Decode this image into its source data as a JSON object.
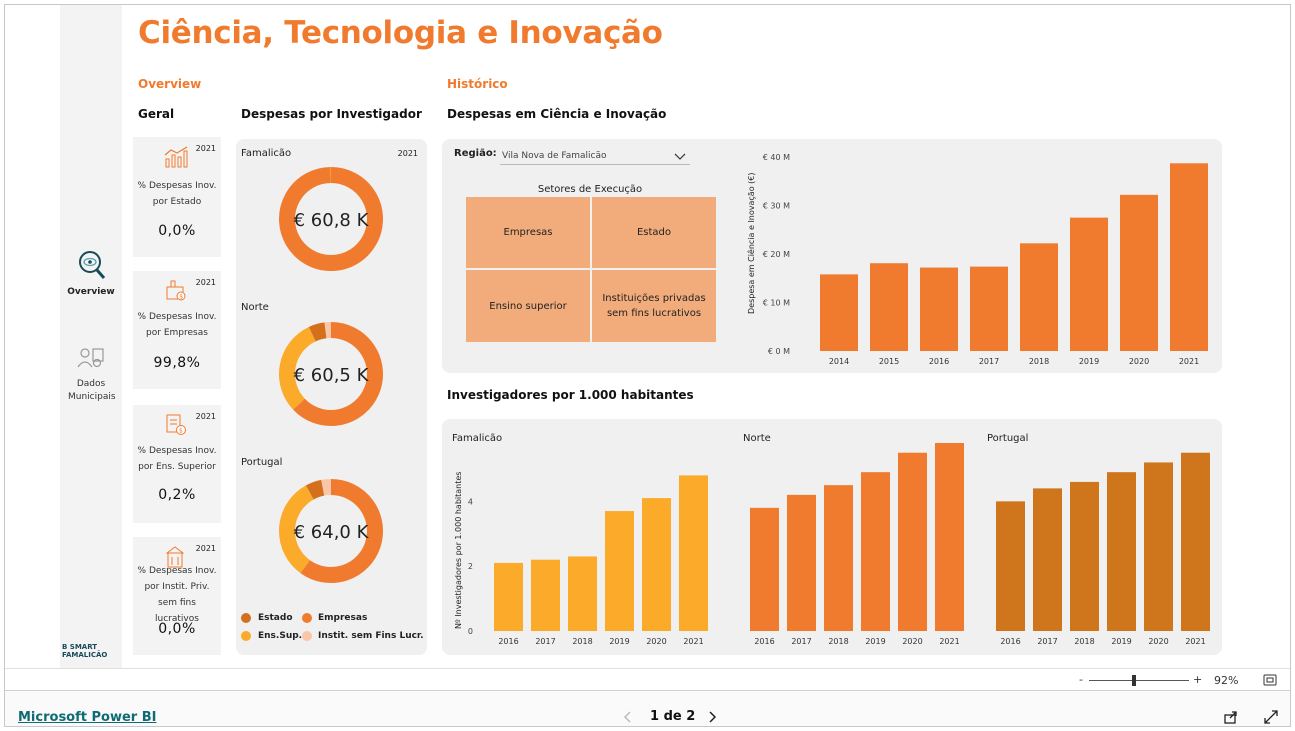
{
  "report": {
    "title": "Ciência, Tecnologia e Inovação",
    "overview_heading": "Overview",
    "historico_heading": "Histórico",
    "geral_heading": "Geral",
    "despesas_investigador_heading": "Despesas por Investigador",
    "despesas_ci_heading": "Despesas em Ciência e Inovação",
    "investigadores_heading": "Investigadores por 1.000 habitantes"
  },
  "nav": {
    "overview_label": "Overview",
    "dados_label": "Dados Municipais",
    "logo_line1": "B SMART",
    "logo_line2": "FAMALICÃO"
  },
  "kpis": [
    {
      "year": "2021",
      "label": "% Despesas Inov. por Estado",
      "value": "0,0%"
    },
    {
      "year": "2021",
      "label": "% Despesas Inov. por Empresas",
      "value": "99,8%"
    },
    {
      "year": "2021",
      "label": "% Despesas Inov. por Ens. Superior",
      "value": "0,2%"
    },
    {
      "year": "2021",
      "label": "% Despesas Inov. por Instit. Priv. sem fins lucrativos",
      "value": "0,0%"
    }
  ],
  "donuts": {
    "year": "2021",
    "items": [
      {
        "region": "Famalicão",
        "value": "€ 60,8 K",
        "shares": {
          "Estado": 0.0,
          "Empresas": 0.998,
          "Ens.Sup.": 0.002,
          "Instit. sem Fins Lucr.": 0.0
        }
      },
      {
        "region": "Norte",
        "value": "€ 60,5 K",
        "shares": {
          "Estado": 0.05,
          "Empresas": 0.63,
          "Ens.Sup.": 0.3,
          "Instit. sem Fins Lucr.": 0.02
        }
      },
      {
        "region": "Portugal",
        "value": "€ 64,0 K",
        "shares": {
          "Estado": 0.05,
          "Empresas": 0.6,
          "Ens.Sup.": 0.32,
          "Instit. sem Fins Lucr.": 0.03
        }
      }
    ],
    "legend": [
      {
        "label": "Estado",
        "color": "#d4701c"
      },
      {
        "label": "Empresas",
        "color": "#f07b2e"
      },
      {
        "label": "Ens.Sup.",
        "color": "#fbaa2a"
      },
      {
        "label": "Instit. sem Fins Lucr.",
        "color": "#f9c7a8"
      }
    ]
  },
  "despesas": {
    "region_label": "Região:",
    "region_value": "Vila Nova de Famalicão",
    "sectors_title": "Setores de Execução",
    "sectors": [
      "Empresas",
      "Estado",
      "Ensino superior",
      "Instituições privadas sem fins lucrativos"
    ]
  },
  "chart_data": [
    {
      "type": "bar",
      "categories": [
        "2014",
        "2015",
        "2016",
        "2017",
        "2018",
        "2019",
        "2020",
        "2021"
      ],
      "values": [
        15.8,
        18.1,
        17.2,
        17.4,
        22.2,
        27.5,
        32.2,
        38.7
      ],
      "ylabel": "Despesa em Ciência e Inovação (€)",
      "yticks": [
        "€ 0 M",
        "€ 10 M",
        "€ 20 M",
        "€ 30 M",
        "€ 40 M"
      ],
      "ylim": [
        0,
        40
      ],
      "color": "#f07b2e"
    },
    {
      "type": "bar",
      "ylabel": "Nº Investigadores por 1.000 habitantes",
      "yticks": [
        "0",
        "2",
        "4"
      ],
      "ylim": [
        0,
        5.8
      ],
      "panels": [
        {
          "name": "Famalicão",
          "categories": [
            "2016",
            "2017",
            "2018",
            "2019",
            "2020",
            "2021"
          ],
          "values": [
            2.1,
            2.2,
            2.3,
            3.7,
            4.1,
            4.8
          ],
          "color": "#fbaa2a"
        },
        {
          "name": "Norte",
          "categories": [
            "2016",
            "2017",
            "2018",
            "2019",
            "2020",
            "2021"
          ],
          "values": [
            3.8,
            4.2,
            4.5,
            4.9,
            5.5,
            5.8
          ],
          "color": "#f07b2e"
        },
        {
          "name": "Portugal",
          "categories": [
            "2016",
            "2017",
            "2018",
            "2019",
            "2020",
            "2021"
          ],
          "values": [
            4.0,
            4.4,
            4.6,
            4.9,
            5.2,
            5.5
          ],
          "color": "#cf761c"
        }
      ]
    }
  ],
  "status": {
    "zoom": "92%",
    "zoom_minus": "-",
    "zoom_plus": "+"
  },
  "footer": {
    "link": "Microsoft Power BI",
    "page": "1 de 2"
  }
}
